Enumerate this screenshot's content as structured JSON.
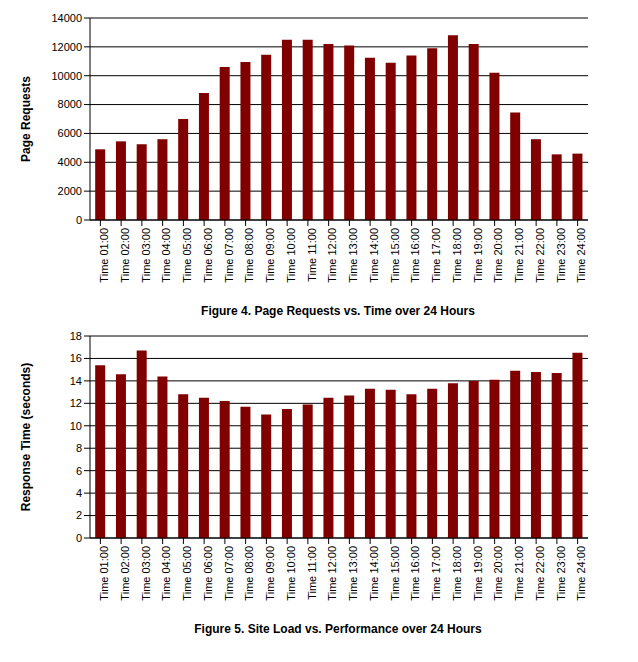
{
  "chart_data": [
    {
      "type": "bar",
      "title": "Figure 4. Page Requests vs. Time over 24 Hours",
      "y_label": "Page Requests",
      "categories": [
        "Time 01:00",
        "Time 02:00",
        "Time 03:00",
        "Time 04:00",
        "Time 05:00",
        "Time 06:00",
        "Time 07:00",
        "Time 08:00",
        "Time 09:00",
        "Time 10:00",
        "Time 11:00",
        "Time 12:00",
        "Time 13:00",
        "Time 14:00",
        "Time 15:00",
        "Time 16:00",
        "Time 17:00",
        "Time 18:00",
        "Time 19:00",
        "Time 20:00",
        "Time 21:00",
        "Time 22:00",
        "Time 23:00",
        "Time 24:00"
      ],
      "values": [
        4900,
        5450,
        5250,
        5600,
        7000,
        8800,
        10600,
        10950,
        11450,
        12500,
        12500,
        12200,
        12100,
        11250,
        10900,
        11400,
        11900,
        12800,
        12200,
        10200,
        7450,
        5600,
        4550,
        4600
      ],
      "color": "#800000",
      "ylim": [
        0,
        14000
      ],
      "yticks": [
        0,
        2000,
        4000,
        6000,
        8000,
        10000,
        12000,
        14000
      ],
      "grid": true
    },
    {
      "type": "bar",
      "title": "Figure 5. Site Load vs. Performance over 24 Hours",
      "y_label": "Response Time (seconds)",
      "categories": [
        "Time 01:00",
        "Time 02:00",
        "Time 03:00",
        "Time 04:00",
        "Time 05:00",
        "Time 06:00",
        "Time 07:00",
        "Time 08:00",
        "Time 09:00",
        "Time 10:00",
        "Time 11:00",
        "Time 12:00",
        "Time 13:00",
        "Time 14:00",
        "Time 15:00",
        "Time 16:00",
        "Time 17:00",
        "Time 18:00",
        "Time 19:00",
        "Time 20:00",
        "Time 21:00",
        "Time 22:00",
        "Time 23:00",
        "Time 24:00"
      ],
      "values": [
        15.4,
        14.6,
        16.7,
        14.4,
        12.8,
        12.5,
        12.2,
        11.7,
        11.0,
        11.5,
        11.9,
        12.5,
        12.7,
        13.3,
        13.2,
        12.8,
        13.3,
        13.8,
        14.0,
        14.1,
        14.9,
        14.8,
        14.7,
        16.5
      ],
      "color": "#800000",
      "ylim": [
        0,
        18
      ],
      "yticks": [
        0,
        2,
        4,
        6,
        8,
        10,
        12,
        14,
        16,
        18
      ],
      "grid": true
    }
  ]
}
